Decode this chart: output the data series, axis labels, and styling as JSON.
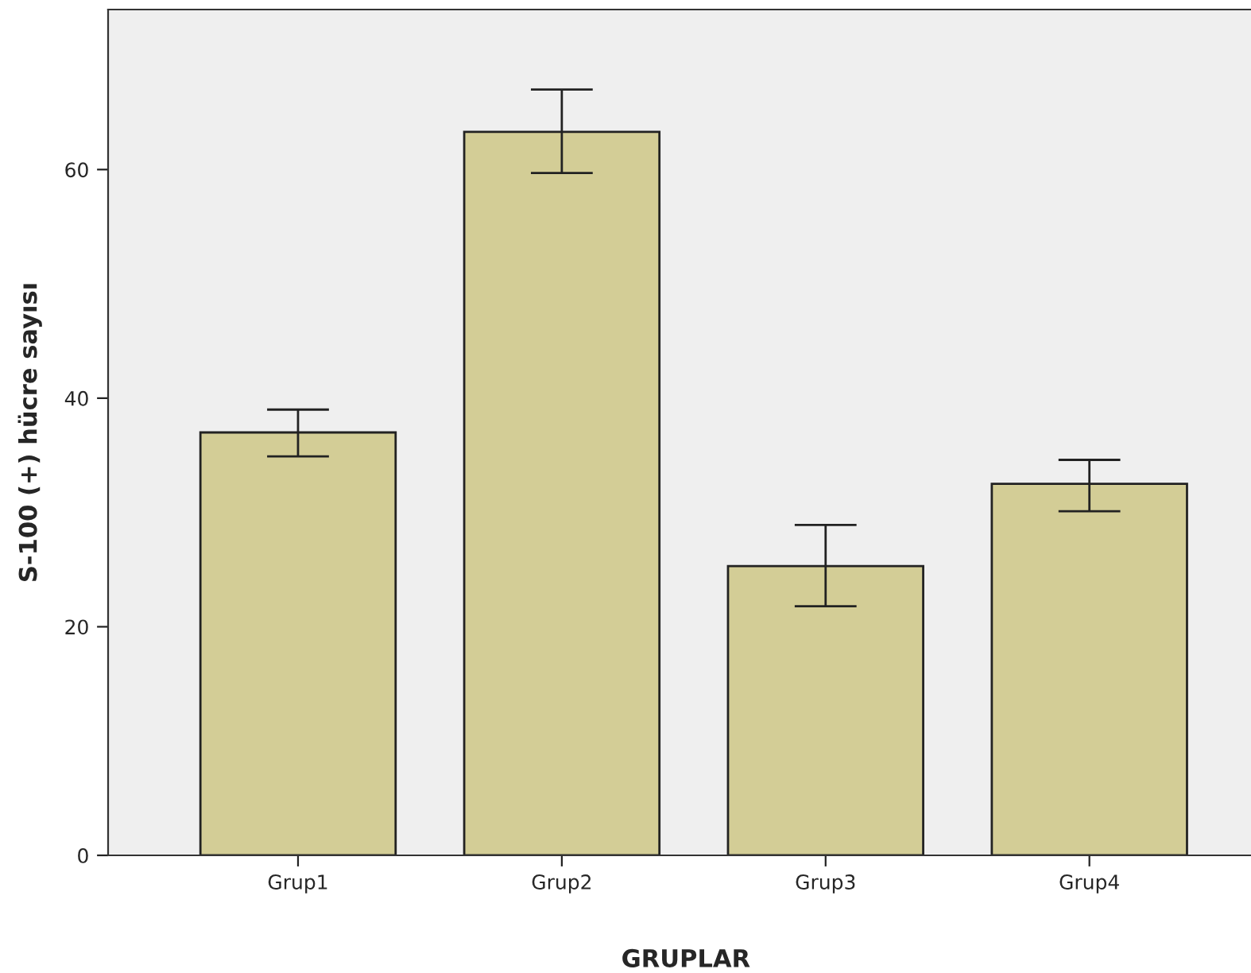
{
  "chart_data": {
    "type": "bar",
    "xlabel": "GRUPLAR",
    "ylabel": "S-100 (+) hücre sayısı",
    "categories": [
      "Grup1",
      "Grup2",
      "Grup3",
      "Grup4"
    ],
    "values": [
      37.0,
      63.3,
      25.3,
      32.5
    ],
    "errors": [
      [
        34.9,
        39.0
      ],
      [
        59.7,
        67.0
      ],
      [
        21.8,
        28.9
      ],
      [
        30.1,
        34.6
      ]
    ],
    "color": "#d3cd96",
    "ylim": [
      0,
      74
    ],
    "yticks": [
      0,
      20,
      40,
      60
    ],
    "grid": false,
    "legend": false
  }
}
